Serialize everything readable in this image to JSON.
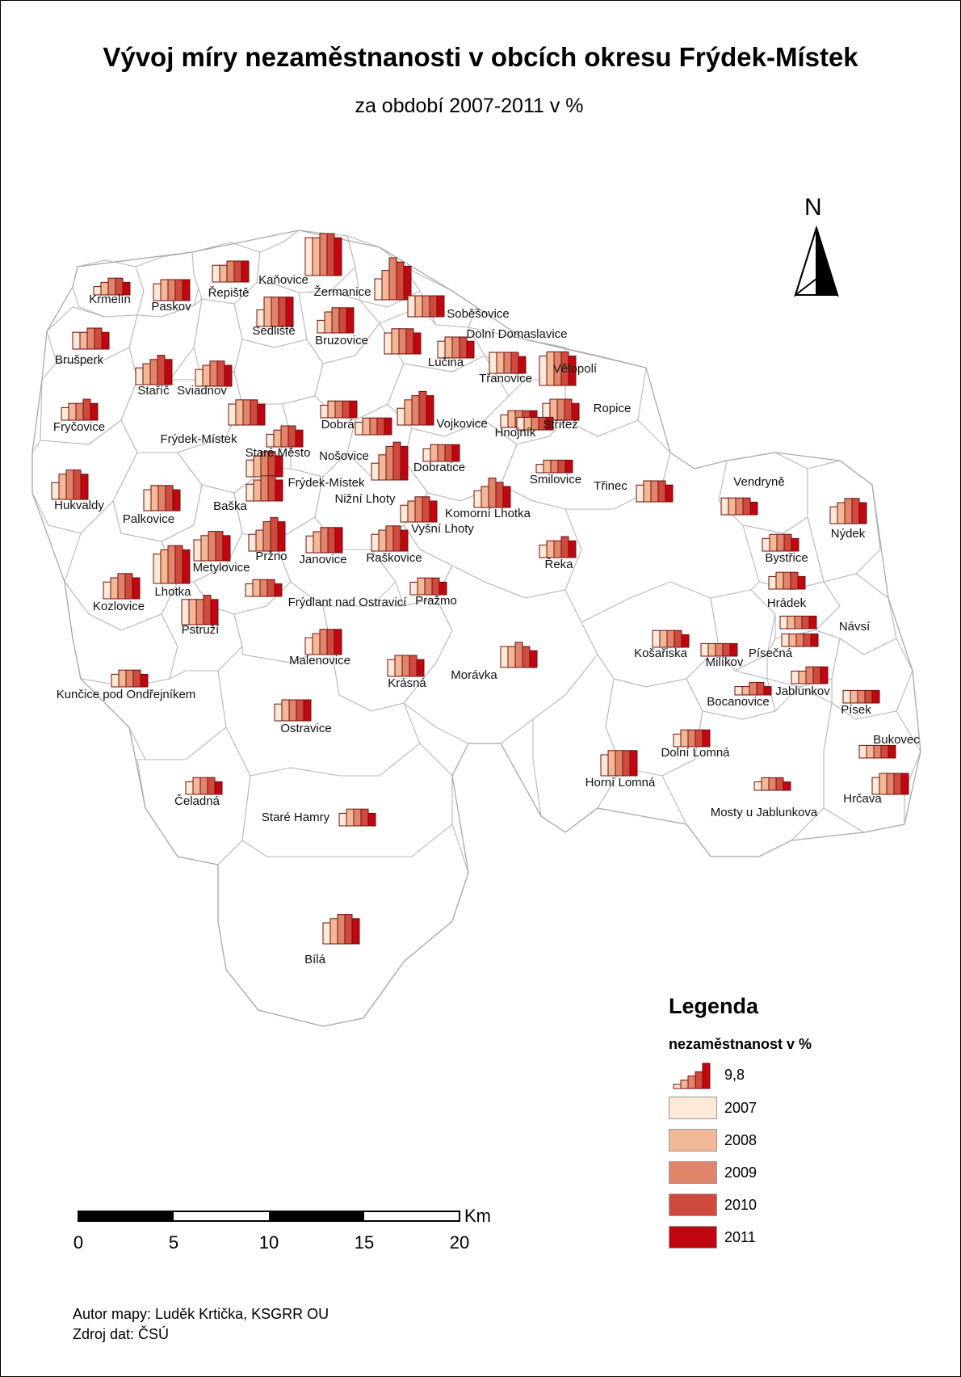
{
  "title": "Vývoj míry nezaměstnanosti v obcích okresu Frýdek-Místek",
  "subtitle": "za období 2007-2011 v %",
  "north": "N",
  "legend": {
    "title": "Legenda",
    "subtitle": "nezaměstnanost v %",
    "reference_value": "9,8",
    "years": [
      {
        "label": "2007",
        "color": "#fde9d7"
      },
      {
        "label": "2008",
        "color": "#f3b896"
      },
      {
        "label": "2009",
        "color": "#e0856a"
      },
      {
        "label": "2010",
        "color": "#d04a3d"
      },
      {
        "label": "2011",
        "color": "#c2060f"
      }
    ]
  },
  "scale": {
    "unit": "Km",
    "ticks": [
      "0",
      "5",
      "10",
      "15",
      "20"
    ]
  },
  "author": "Autor mapy: Luděk Krtička, KSGRR OU",
  "source": "Zdroj dat: ČSÚ",
  "places": [
    {
      "name": "Krmelín",
      "label": [
        136,
        375
      ],
      "bars": [
        2,
        3,
        4,
        4,
        3
      ],
      "chart": [
        116,
        365
      ]
    },
    {
      "name": "Paskov",
      "label": [
        212,
        384
      ],
      "bars": [
        4,
        5,
        5,
        5,
        5
      ],
      "chart": [
        190,
        372
      ]
    },
    {
      "name": "Řepiště",
      "label": [
        283,
        367
      ],
      "bars": [
        4,
        4,
        5,
        5,
        5
      ],
      "chart": [
        263,
        349
      ]
    },
    {
      "name": "Kaňovice",
      "label": [
        351,
        351
      ],
      "bars": [
        9,
        9,
        10,
        10,
        9
      ],
      "chart": [
        378,
        341
      ]
    },
    {
      "name": "Žermanice",
      "label": [
        424,
        366
      ],
      "bars": [
        5,
        7,
        10,
        9,
        8
      ],
      "chart": [
        464,
        371
      ]
    },
    {
      "name": "Soběšovice",
      "label": [
        592,
        393
      ],
      "bars": [
        5,
        5,
        5,
        5,
        5
      ],
      "chart": [
        505,
        392
      ]
    },
    {
      "name": "Sedliště",
      "label": [
        339,
        414
      ],
      "bars": [
        4,
        7,
        7,
        7,
        7
      ],
      "chart": [
        318,
        404
      ]
    },
    {
      "name": "Bruzovice",
      "label": [
        423,
        426
      ],
      "bars": [
        3,
        5,
        6,
        6,
        6
      ],
      "chart": [
        393,
        412
      ]
    },
    {
      "name": "Dolní Domaslavice",
      "label": [
        640,
        418
      ],
      "bars": [
        4,
        5,
        5,
        5,
        4
      ],
      "chart": [
        542,
        443
      ]
    },
    {
      "name": "Brušperk",
      "label": [
        98,
        450
      ],
      "bars": [
        4,
        4,
        5,
        5,
        4
      ],
      "chart": [
        90,
        432
      ]
    },
    {
      "name": "Lučina",
      "label": [
        552,
        453
      ],
      "bars": [
        5,
        6,
        6,
        6,
        5
      ],
      "chart": [
        476,
        438
      ]
    },
    {
      "name": "Třanovice",
      "label": [
        626,
        473
      ],
      "bars": [
        5,
        5,
        5,
        5,
        4
      ],
      "chart": [
        606,
        462
      ]
    },
    {
      "name": "Vělopolí",
      "label": [
        712,
        461
      ],
      "bars": [
        7,
        8,
        8,
        8,
        7
      ],
      "chart": [
        668,
        477
      ]
    },
    {
      "name": "Staříč",
      "label": [
        190,
        488
      ],
      "bars": [
        4,
        5,
        6,
        7,
        6
      ],
      "chart": [
        168,
        476
      ]
    },
    {
      "name": "Sviadnov",
      "label": [
        250,
        488
      ],
      "bars": [
        4,
        5,
        6,
        6,
        5
      ],
      "chart": [
        242,
        478
      ]
    },
    {
      "name": "Ropice",
      "label": [
        758,
        510
      ],
      "bars": [
        4,
        5,
        5,
        5,
        4
      ],
      "chart": [
        672,
        520
      ]
    },
    {
      "name": "Fryčovice",
      "label": [
        98,
        533
      ],
      "bars": [
        3,
        4,
        4,
        5,
        4
      ],
      "chart": [
        76,
        520
      ]
    },
    {
      "name": "Dobrá",
      "label": [
        418,
        530
      ],
      "bars": [
        3,
        4,
        4,
        4,
        4
      ],
      "chart": [
        397,
        517
      ]
    },
    {
      "name": "Vojkovice",
      "label": [
        572,
        529
      ],
      "bars": [
        4,
        6,
        7,
        8,
        7
      ],
      "chart": [
        492,
        526
      ]
    },
    {
      "name": "Hnojník",
      "label": [
        638,
        540
      ],
      "bars": [
        3,
        4,
        4,
        4,
        4
      ],
      "chart": [
        620,
        529
      ]
    },
    {
      "name": "Střítež",
      "label": [
        694,
        530
      ],
      "bars": [
        3,
        3,
        3,
        3,
        3
      ],
      "chart": [
        640,
        532
      ]
    },
    {
      "name": "Frýdek-Místek",
      "label": [
        246,
        548
      ],
      "bars": [
        5,
        6,
        6,
        6,
        5
      ],
      "chart": [
        283,
        526
      ]
    },
    {
      "name": "Staré Město",
      "label": [
        344,
        565
      ],
      "bars": [
        3,
        4,
        5,
        5,
        4
      ],
      "chart": [
        330,
        553
      ]
    },
    {
      "name": "Nošovice",
      "label": [
        426,
        569
      ],
      "bars": [
        3,
        4,
        4,
        4,
        4
      ],
      "chart": [
        440,
        538
      ]
    },
    {
      "name": "Dobratice",
      "label": [
        544,
        583
      ],
      "bars": [
        3,
        4,
        4,
        4,
        4
      ],
      "chart": [
        524,
        571
      ]
    },
    {
      "name": "Smilovice",
      "label": [
        688,
        598
      ],
      "bars": [
        2,
        3,
        3,
        3,
        3
      ],
      "chart": [
        664,
        585
      ]
    },
    {
      "name": "Třinec",
      "label": [
        756,
        606
      ],
      "bars": [
        4,
        5,
        5,
        5,
        4
      ],
      "chart": [
        788,
        621
      ]
    },
    {
      "name": "Vendryně",
      "label": [
        940,
        601
      ],
      "bars": [
        4,
        4,
        4,
        4,
        3
      ],
      "chart": [
        893,
        637
      ]
    },
    {
      "name": "Hukvaldy",
      "label": [
        98,
        630
      ],
      "bars": [
        4,
        6,
        7,
        7,
        6
      ],
      "chart": [
        64,
        618
      ]
    },
    {
      "name": "Frýdek-Místek",
      "label": [
        404,
        602
      ],
      "bars": [
        4,
        5,
        6,
        6,
        5
      ],
      "chart": [
        305,
        590
      ]
    },
    {
      "name": "Nižní Lhoty",
      "label": [
        452,
        622
      ],
      "bars": [
        4,
        6,
        8,
        9,
        8
      ],
      "chart": [
        460,
        594
      ]
    },
    {
      "name": "Komorní Lhotka",
      "label": [
        604,
        640
      ],
      "bars": [
        4,
        5,
        7,
        6,
        5
      ],
      "chart": [
        587,
        628
      ]
    },
    {
      "name": "Nýdek",
      "label": [
        1050,
        665
      ],
      "bars": [
        4,
        5,
        6,
        6,
        5
      ],
      "chart": [
        1028,
        648
      ]
    },
    {
      "name": "Palkovice",
      "label": [
        184,
        647
      ],
      "bars": [
        5,
        6,
        6,
        6,
        5
      ],
      "chart": [
        178,
        632
      ]
    },
    {
      "name": "Baška",
      "label": [
        285,
        631
      ],
      "bars": [
        4,
        5,
        6,
        6,
        5
      ],
      "chart": [
        305,
        620
      ]
    },
    {
      "name": "Vyšní Lhoty",
      "label": [
        548,
        659
      ],
      "bars": [
        4,
        5,
        6,
        6,
        5
      ],
      "chart": [
        496,
        646
      ]
    },
    {
      "name": "Bystřice",
      "label": [
        974,
        695
      ],
      "bars": [
        3,
        4,
        4,
        4,
        3
      ],
      "chart": [
        944,
        682
      ]
    },
    {
      "name": "Metylovice",
      "label": [
        274,
        707
      ],
      "bars": [
        5,
        6,
        7,
        7,
        6
      ],
      "chart": [
        240,
        694
      ]
    },
    {
      "name": "Pržno",
      "label": [
        336,
        693
      ],
      "bars": [
        4,
        5,
        7,
        8,
        7
      ],
      "chart": [
        308,
        682
      ]
    },
    {
      "name": "Janovice",
      "label": [
        400,
        697
      ],
      "bars": [
        4,
        5,
        6,
        6,
        6
      ],
      "chart": [
        379,
        684
      ]
    },
    {
      "name": "Raškovice",
      "label": [
        488,
        695
      ],
      "bars": [
        4,
        5,
        6,
        6,
        5
      ],
      "chart": [
        460,
        682
      ]
    },
    {
      "name": "Řeka",
      "label": [
        692,
        703
      ],
      "bars": [
        3,
        4,
        4,
        5,
        4
      ],
      "chart": [
        668,
        690
      ]
    },
    {
      "name": "Hrádek",
      "label": [
        974,
        751
      ],
      "bars": [
        3,
        4,
        4,
        4,
        3
      ],
      "chart": [
        952,
        729
      ]
    },
    {
      "name": "Kozlovice",
      "label": [
        147,
        755
      ],
      "bars": [
        4,
        5,
        6,
        6,
        5
      ],
      "chart": [
        128,
        741
      ]
    },
    {
      "name": "Lhotka",
      "label": [
        214,
        737
      ],
      "bars": [
        7,
        8,
        9,
        9,
        8
      ],
      "chart": [
        190,
        722
      ]
    },
    {
      "name": "Frýdlant nad Ostravicí",
      "label": [
        430,
        750
      ],
      "bars": [
        3,
        4,
        4,
        4,
        3
      ],
      "chart": [
        304,
        738
      ]
    },
    {
      "name": "Pražmo",
      "label": [
        540,
        748
      ],
      "bars": [
        3,
        4,
        4,
        4,
        3
      ],
      "chart": [
        508,
        736
      ]
    },
    {
      "name": "Návsí",
      "label": [
        1058,
        780
      ],
      "bars": [
        3,
        3,
        3,
        3,
        3
      ],
      "chart": [
        966,
        778
      ]
    },
    {
      "name": "Pstruží",
      "label": [
        248,
        784
      ],
      "bars": [
        6,
        6,
        6,
        7,
        6
      ],
      "chart": [
        225,
        773
      ]
    },
    {
      "name": "Košařiska",
      "label": [
        818,
        813
      ],
      "bars": [
        4,
        4,
        4,
        4,
        3
      ],
      "chart": [
        808,
        801
      ]
    },
    {
      "name": "Písečná",
      "label": [
        954,
        813
      ],
      "bars": [
        3,
        3,
        3,
        3,
        3
      ],
      "chart": [
        968,
        800
      ]
    },
    {
      "name": "Malenovice",
      "label": [
        396,
        822
      ],
      "bars": [
        4,
        5,
        6,
        6,
        6
      ],
      "chart": [
        378,
        810
      ]
    },
    {
      "name": "Morávka",
      "label": [
        587,
        840
      ],
      "bars": [
        5,
        5,
        6,
        5,
        4
      ],
      "chart": [
        620,
        826
      ]
    },
    {
      "name": "Milíkov",
      "label": [
        897,
        824
      ],
      "bars": [
        3,
        3,
        3,
        3,
        3
      ],
      "chart": [
        868,
        812
      ]
    },
    {
      "name": "Jablunkov",
      "label": [
        994,
        860
      ],
      "bars": [
        3,
        3,
        4,
        4,
        4
      ],
      "chart": [
        980,
        846
      ]
    },
    {
      "name": "Krásná",
      "label": [
        504,
        850
      ],
      "bars": [
        4,
        5,
        5,
        5,
        4
      ],
      "chart": [
        480,
        837
      ]
    },
    {
      "name": "Kunčice pod Ondřejníkem",
      "label": [
        156,
        864
      ],
      "bars": [
        3,
        4,
        4,
        4,
        3
      ],
      "chart": [
        138,
        850
      ]
    },
    {
      "name": "Bocanovice",
      "label": [
        914,
        873
      ],
      "bars": [
        2,
        2,
        3,
        3,
        2
      ],
      "chart": [
        910,
        860
      ]
    },
    {
      "name": "Písek",
      "label": [
        1060,
        883
      ],
      "bars": [
        3,
        3,
        3,
        3,
        3
      ],
      "chart": [
        1044,
        870
      ]
    },
    {
      "name": "Ostravice",
      "label": [
        379,
        906
      ],
      "bars": [
        4,
        5,
        5,
        5,
        5
      ],
      "chart": [
        340,
        892
      ]
    },
    {
      "name": "Bukovec",
      "label": [
        1110,
        920
      ],
      "bars": [
        3,
        3,
        3,
        3,
        3
      ],
      "chart": [
        1064,
        938
      ]
    },
    {
      "name": "Dolní Lomná",
      "label": [
        861,
        936
      ],
      "bars": [
        3,
        4,
        4,
        4,
        4
      ],
      "chart": [
        834,
        924
      ]
    },
    {
      "name": "Horní Lomná",
      "label": [
        768,
        973
      ],
      "bars": [
        5,
        6,
        6,
        6,
        6
      ],
      "chart": [
        744,
        960
      ]
    },
    {
      "name": "Hrčava",
      "label": [
        1068,
        993
      ],
      "bars": [
        4,
        5,
        5,
        5,
        5
      ],
      "chart": [
        1080,
        983
      ]
    },
    {
      "name": "Čeladná",
      "label": [
        244,
        996
      ],
      "bars": [
        3,
        4,
        4,
        4,
        3
      ],
      "chart": [
        230,
        983
      ]
    },
    {
      "name": "Mosty u Jablunkova",
      "label": [
        946,
        1010
      ],
      "bars": [
        2,
        3,
        3,
        3,
        2
      ],
      "chart": [
        934,
        978
      ]
    },
    {
      "name": "Staré Hamry",
      "label": [
        366,
        1016
      ],
      "bars": [
        3,
        4,
        4,
        4,
        3
      ],
      "chart": [
        420,
        1022
      ]
    },
    {
      "name": "Bílá",
      "label": [
        390,
        1192
      ],
      "bars": [
        5,
        6,
        7,
        7,
        6
      ],
      "chart": [
        400,
        1168
      ]
    }
  ]
}
